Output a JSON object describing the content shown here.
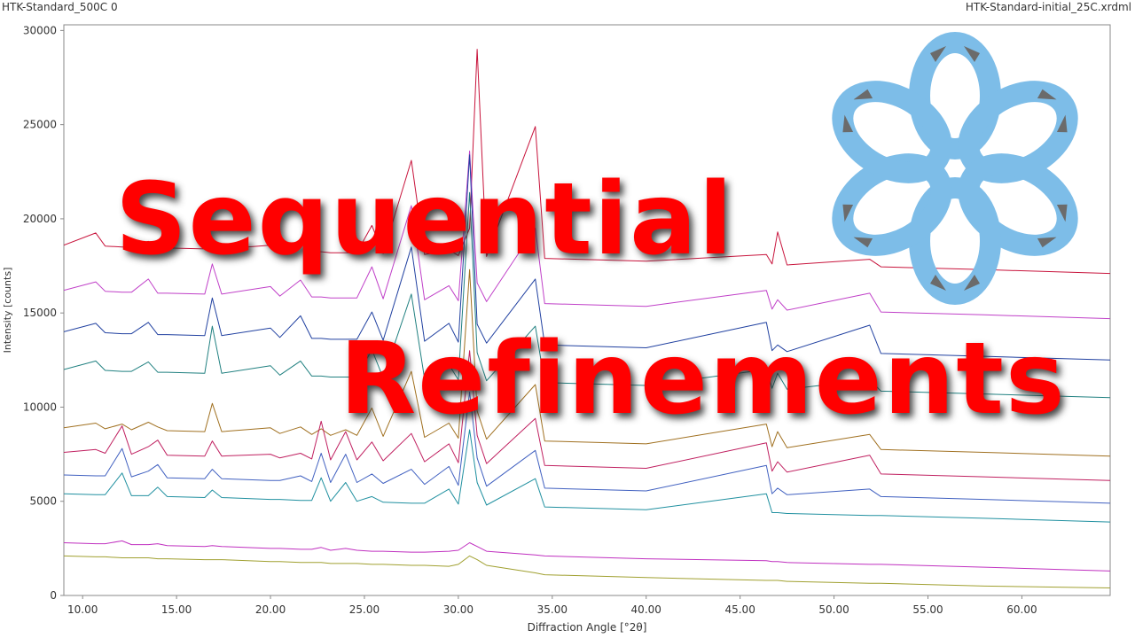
{
  "header": {
    "left": "HTK-Standard_500C 0",
    "right": "HTK-Standard-initial_25C.xrdml"
  },
  "overlay": {
    "lines": [
      "Sequential",
      "Refinements"
    ]
  },
  "chart_data": {
    "type": "line",
    "x_label": "Diffraction Angle [°2θ]",
    "y_label": "Intensity [counts]",
    "xlim": [
      9,
      64.7
    ],
    "ylim": [
      0,
      30300
    ],
    "xticks": [
      {
        "value": 10,
        "label": "10.00"
      },
      {
        "value": 15,
        "label": "15.00"
      },
      {
        "value": 20,
        "label": "20.00"
      },
      {
        "value": 25,
        "label": "25.00"
      },
      {
        "value": 30,
        "label": "30.00"
      },
      {
        "value": 35,
        "label": "35.00"
      },
      {
        "value": 40,
        "label": "40.00"
      },
      {
        "value": 45,
        "label": "45.00"
      },
      {
        "value": 50,
        "label": "50.00"
      },
      {
        "value": 55,
        "label": "55.00"
      },
      {
        "value": 60,
        "label": "60.00"
      }
    ],
    "yticks": [
      0,
      5000,
      10000,
      15000,
      20000,
      25000,
      30000
    ],
    "x": [
      9,
      10.7,
      11.2,
      12.1,
      12.6,
      13.5,
      14.0,
      14.5,
      16.5,
      16.9,
      17.4,
      20.0,
      20.5,
      21.6,
      22.2,
      22.7,
      23.2,
      24.0,
      24.6,
      25.4,
      26.0,
      27.5,
      28.2,
      29.5,
      30.0,
      30.6,
      31.0,
      31.5,
      34.1,
      34.6,
      40.0,
      46.4,
      46.7,
      47.0,
      47.5,
      51.9,
      52.5,
      58.0,
      64.7
    ],
    "series": [
      {
        "color": "#c8143c",
        "values": [
          18600,
          19250,
          18550,
          18500,
          18500,
          18800,
          18450,
          18450,
          18400,
          18600,
          18400,
          18600,
          18300,
          18750,
          18250,
          18250,
          18200,
          18200,
          18200,
          19650,
          18150,
          23100,
          18100,
          18350,
          18050,
          19500,
          29000,
          18000,
          24900,
          17900,
          17750,
          18100,
          17600,
          19300,
          17550,
          17850,
          17450,
          17300,
          17100
        ]
      },
      {
        "color": "#c040c8",
        "values": [
          16200,
          16650,
          16150,
          16100,
          16100,
          16800,
          16050,
          16050,
          16000,
          17600,
          16000,
          16400,
          15900,
          16750,
          15850,
          15850,
          15800,
          15800,
          15800,
          17450,
          15750,
          20700,
          15700,
          16450,
          15650,
          23600,
          16600,
          15600,
          19500,
          15500,
          15350,
          16200,
          15200,
          15700,
          15150,
          16050,
          15050,
          14900,
          14700
        ]
      },
      {
        "color": "#2040a0",
        "values": [
          14000,
          14450,
          13950,
          13900,
          13900,
          14500,
          13850,
          13850,
          13800,
          15800,
          13800,
          14200,
          13700,
          14850,
          13650,
          13650,
          13600,
          13600,
          13600,
          15050,
          13550,
          18500,
          13500,
          14450,
          13450,
          23400,
          14400,
          13400,
          16800,
          13300,
          13150,
          14500,
          13000,
          13300,
          12950,
          14350,
          12850,
          12700,
          12500
        ]
      },
      {
        "color": "#208080",
        "values": [
          12000,
          12450,
          11950,
          11900,
          11900,
          12400,
          11850,
          11850,
          11800,
          14300,
          11800,
          12200,
          11700,
          12450,
          11650,
          11650,
          11600,
          11600,
          11600,
          13050,
          11550,
          16000,
          11500,
          12250,
          11450,
          21400,
          12900,
          11400,
          14300,
          11300,
          11150,
          12000,
          11000,
          11800,
          10950,
          11450,
          10850,
          10700,
          10500
        ]
      },
      {
        "color": "#a07020",
        "values": [
          8900,
          9150,
          8850,
          9100,
          8800,
          9200,
          8950,
          8750,
          8700,
          10200,
          8700,
          8900,
          8600,
          8950,
          8550,
          8850,
          8500,
          8800,
          8500,
          9950,
          8450,
          11900,
          8400,
          9150,
          8350,
          17300,
          9800,
          8300,
          11200,
          8200,
          8050,
          9100,
          7900,
          8700,
          7850,
          8550,
          7750,
          7600,
          7400
        ]
      },
      {
        "color": "#c02060",
        "values": [
          7600,
          7750,
          7550,
          9000,
          7500,
          7900,
          8250,
          7450,
          7400,
          8200,
          7400,
          7500,
          7300,
          7550,
          7250,
          9250,
          7200,
          8700,
          7200,
          8150,
          7150,
          8600,
          7100,
          8050,
          7050,
          13000,
          8500,
          7000,
          9400,
          6900,
          6750,
          8100,
          6600,
          7100,
          6550,
          7450,
          6450,
          6300,
          6100
        ]
      },
      {
        "color": "#4060c0",
        "values": [
          6400,
          6350,
          6350,
          7800,
          6300,
          6600,
          6950,
          6250,
          6200,
          6700,
          6200,
          6100,
          6100,
          6350,
          6050,
          7550,
          6000,
          7500,
          6000,
          6450,
          5950,
          6700,
          5900,
          6850,
          5850,
          10800,
          7300,
          5800,
          7700,
          5700,
          5550,
          6900,
          5400,
          5700,
          5350,
          5650,
          5250,
          5100,
          4900
        ]
      },
      {
        "color": "#2090a0",
        "values": [
          5400,
          5350,
          5350,
          6500,
          5300,
          5300,
          5750,
          5250,
          5200,
          5600,
          5200,
          5100,
          5100,
          5050,
          5050,
          6250,
          5000,
          6000,
          5000,
          5250,
          4950,
          4900,
          4900,
          5650,
          4850,
          8800,
          6000,
          4800,
          6200,
          4700,
          4550,
          5400,
          4400,
          4400,
          4350,
          4250,
          4250,
          4100,
          3900
        ]
      },
      {
        "color": "#c030c0",
        "values": [
          2800,
          2750,
          2750,
          2900,
          2700,
          2700,
          2750,
          2650,
          2600,
          2650,
          2600,
          2500,
          2500,
          2450,
          2450,
          2550,
          2400,
          2500,
          2400,
          2350,
          2350,
          2300,
          2300,
          2350,
          2400,
          2800,
          2600,
          2350,
          2150,
          2100,
          1950,
          1850,
          1800,
          1800,
          1750,
          1650,
          1650,
          1500,
          1300
        ]
      },
      {
        "color": "#a0a030",
        "values": [
          2100,
          2050,
          2050,
          2000,
          2000,
          2000,
          1950,
          1950,
          1900,
          1900,
          1900,
          1800,
          1800,
          1750,
          1750,
          1750,
          1700,
          1700,
          1700,
          1650,
          1650,
          1600,
          1600,
          1550,
          1650,
          2100,
          1900,
          1600,
          1200,
          1100,
          950,
          800,
          800,
          800,
          750,
          650,
          650,
          500,
          400
        ]
      }
    ]
  }
}
